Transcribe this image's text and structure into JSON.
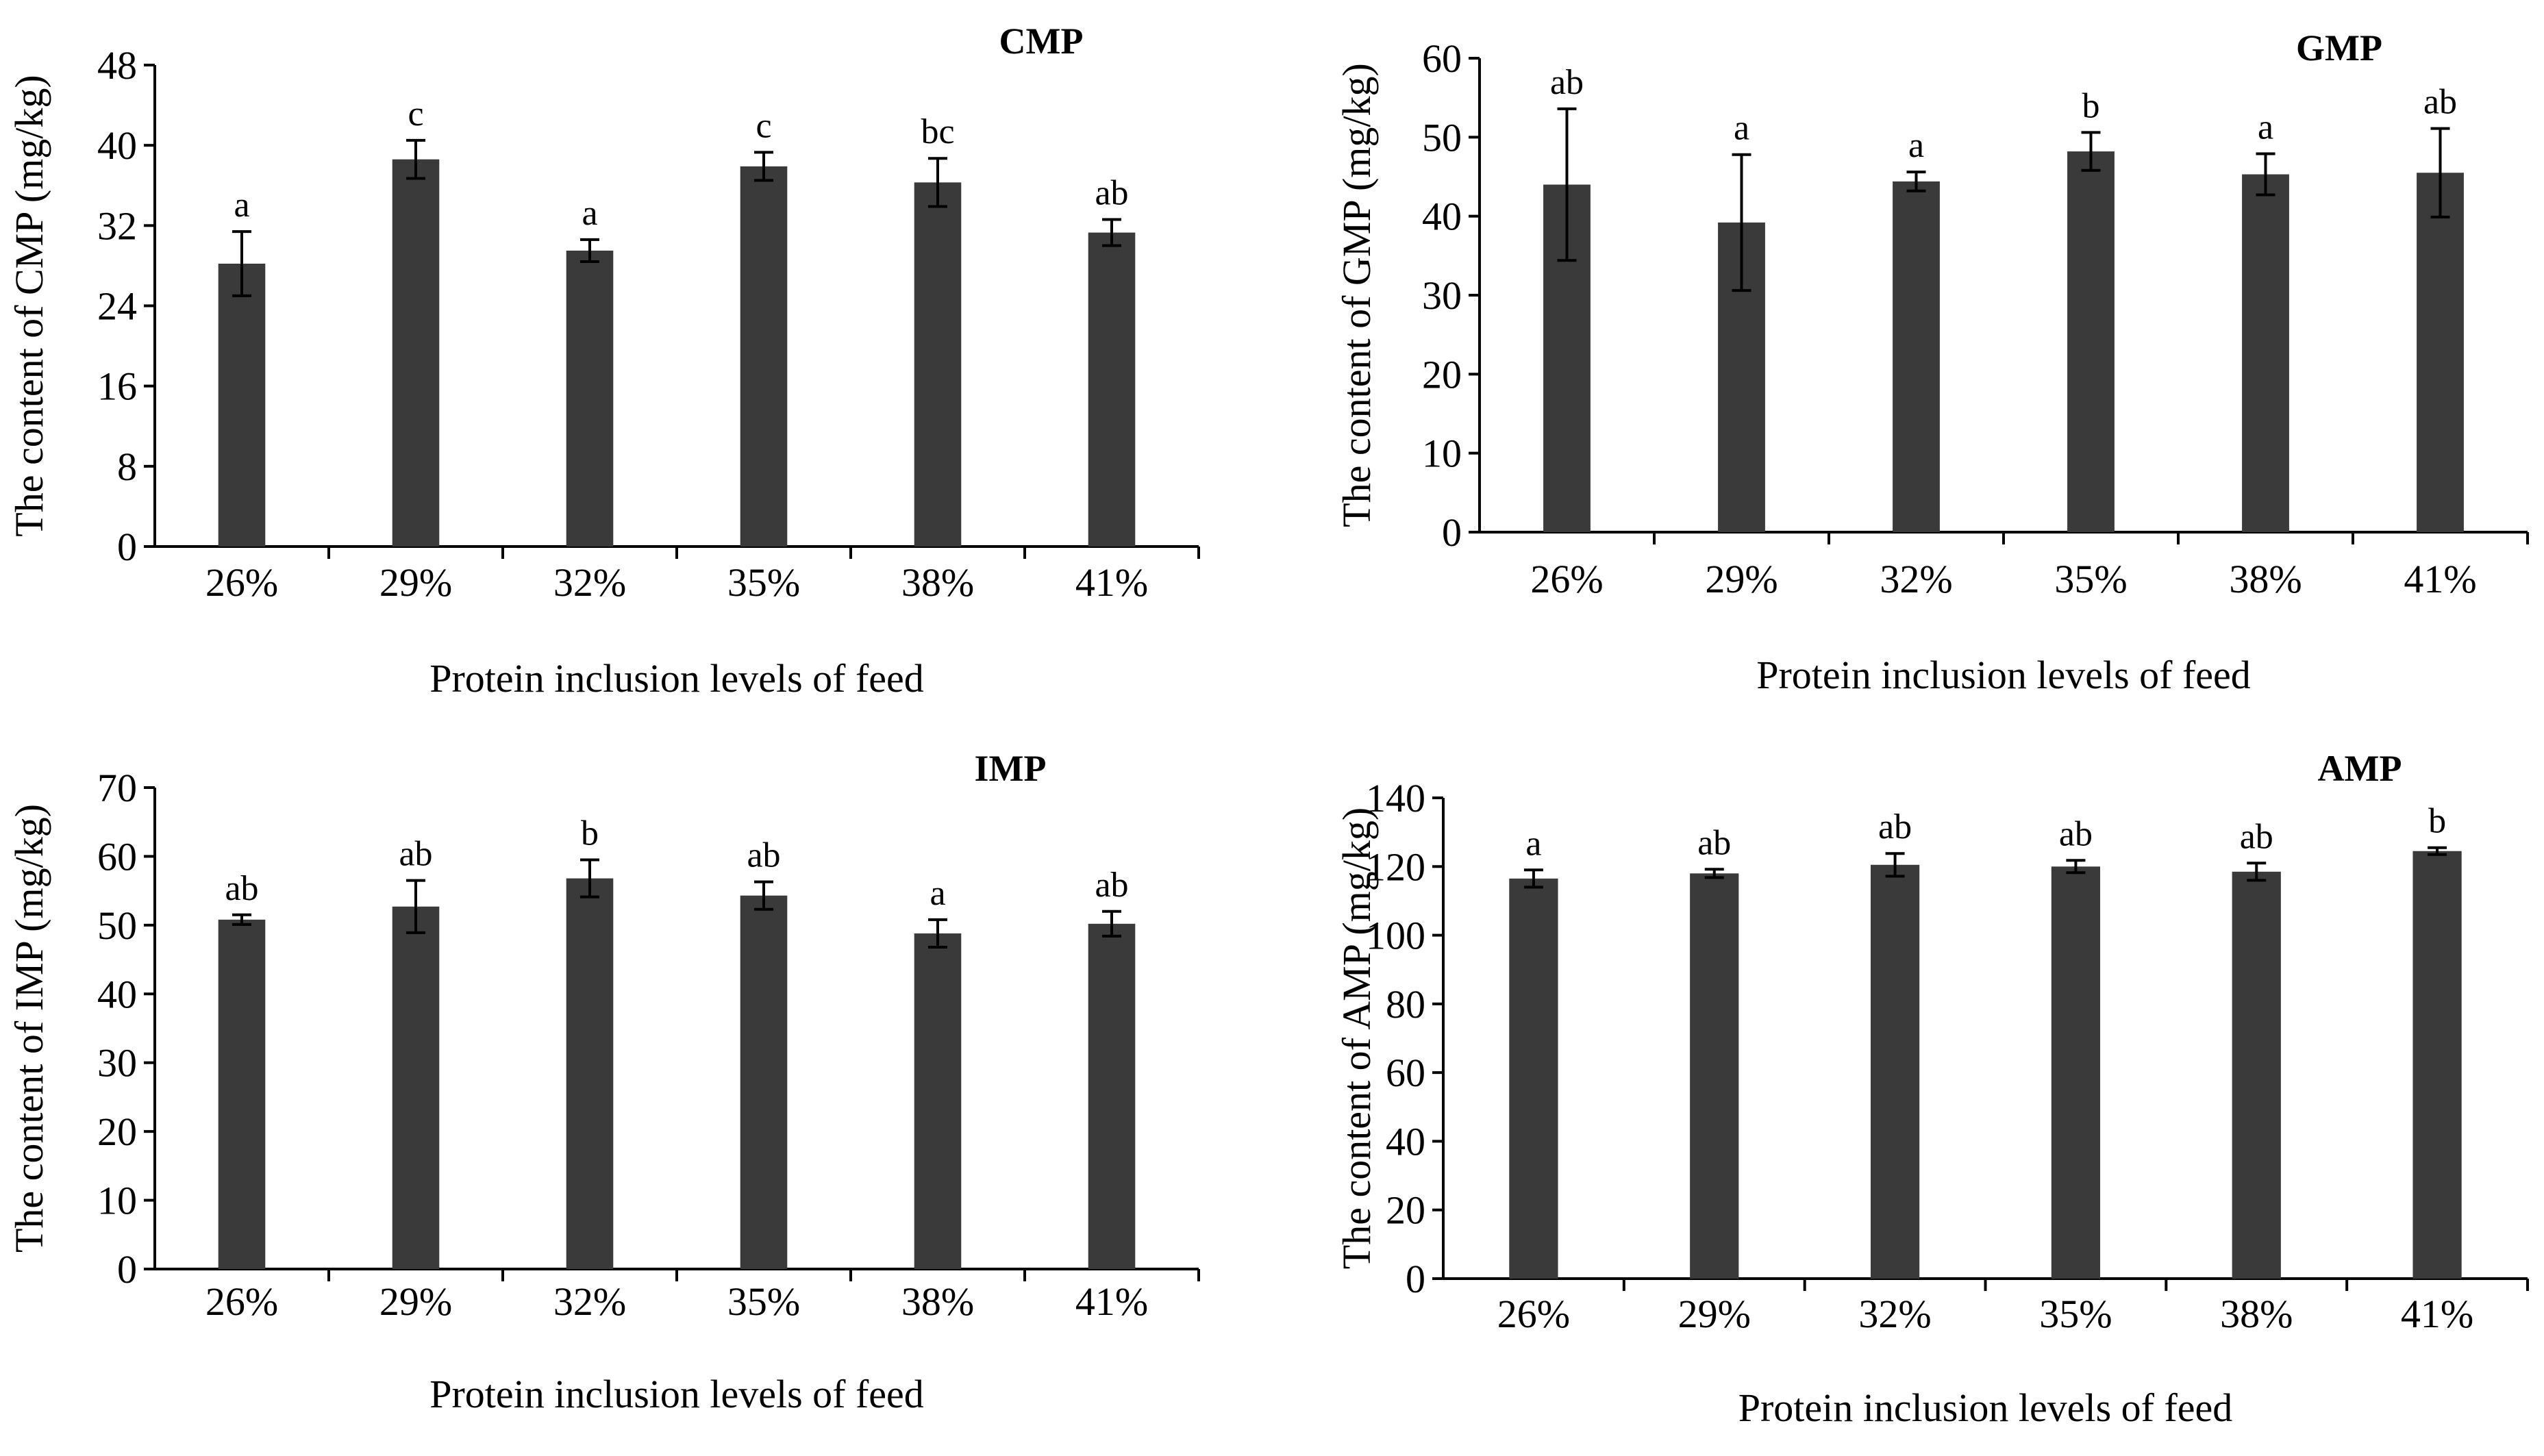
{
  "chart_data": [
    {
      "type": "bar",
      "title": "CMP",
      "xlabel": "Protein inclusion levels of feed",
      "ylabel": "The  content of CMP (mg/kg)",
      "categories": [
        "26%",
        "29%",
        "32%",
        "35%",
        "38%",
        "41%"
      ],
      "values": [
        28.2,
        38.6,
        29.5,
        37.9,
        36.3,
        31.3
      ],
      "errors": [
        3.2,
        1.9,
        1.1,
        1.4,
        2.4,
        1.3
      ],
      "significance": [
        "a",
        "c",
        "a",
        "c",
        "bc",
        "ab"
      ],
      "ylim": [
        0,
        48
      ],
      "yticks": [
        0,
        8,
        16,
        24,
        32,
        40,
        48
      ],
      "color": "#3a3a3a"
    },
    {
      "type": "bar",
      "title": "GMP",
      "xlabel": "Protein inclusion levels of feed",
      "ylabel": "The  content of GMP (mg/kg)",
      "categories": [
        "26%",
        "29%",
        "32%",
        "35%",
        "38%",
        "41%"
      ],
      "values": [
        44.0,
        39.2,
        44.4,
        48.2,
        45.3,
        45.5
      ],
      "errors": [
        9.6,
        8.6,
        1.2,
        2.4,
        2.6,
        5.6
      ],
      "significance": [
        "ab",
        "a",
        "a",
        "b",
        "a",
        "ab"
      ],
      "ylim": [
        0,
        60
      ],
      "yticks": [
        0,
        10,
        20,
        30,
        40,
        50,
        60
      ],
      "color": "#3a3a3a"
    },
    {
      "type": "bar",
      "title": "IMP",
      "xlabel": "Protein inclusion levels of feed",
      "ylabel": "The  content of IMP (mg/kg)",
      "categories": [
        "26%",
        "29%",
        "32%",
        "35%",
        "38%",
        "41%"
      ],
      "values": [
        50.8,
        52.7,
        56.8,
        54.3,
        48.8,
        50.2
      ],
      "errors": [
        0.7,
        3.8,
        2.7,
        2.0,
        2.0,
        1.8
      ],
      "significance": [
        "ab",
        "ab",
        "b",
        "ab",
        "a",
        "ab"
      ],
      "ylim": [
        0,
        70
      ],
      "yticks": [
        0,
        10,
        20,
        30,
        40,
        50,
        60,
        70
      ],
      "color": "#3a3a3a"
    },
    {
      "type": "bar",
      "title": "AMP",
      "xlabel": "Protein inclusion levels of feed",
      "ylabel": "The  content of AMP (mg/kg)",
      "categories": [
        "26%",
        "29%",
        "32%",
        "35%",
        "38%",
        "41%"
      ],
      "values": [
        116.5,
        118.0,
        120.5,
        120.0,
        118.5,
        124.5
      ],
      "errors": [
        2.5,
        1.2,
        3.3,
        1.8,
        2.5,
        1.0
      ],
      "significance": [
        "a",
        "ab",
        "ab",
        "ab",
        "ab",
        "b"
      ],
      "ylim": [
        0,
        140
      ],
      "yticks": [
        0,
        20,
        40,
        60,
        80,
        100,
        120,
        140
      ],
      "color": "#3a3a3a"
    }
  ]
}
